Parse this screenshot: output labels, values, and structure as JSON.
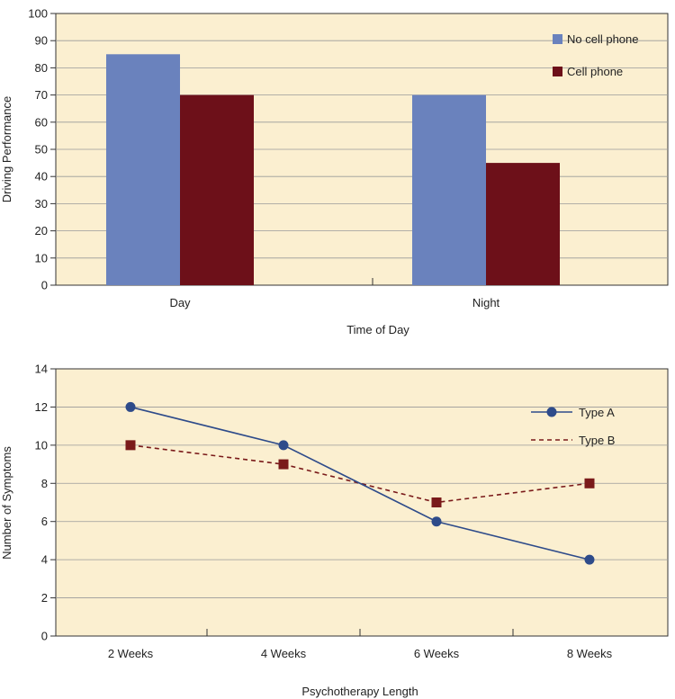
{
  "chart_data": [
    {
      "type": "bar",
      "xlabel": "Time of Day",
      "ylabel": "Driving Performance",
      "ylim": [
        0,
        100
      ],
      "ytick_step": 10,
      "categories": [
        "Day",
        "Night"
      ],
      "grid": true,
      "legend_position": "top-right",
      "background_color": "#fbefd0",
      "series": [
        {
          "name": "No cell phone",
          "values": [
            85,
            70
          ],
          "color": "#6a82bd"
        },
        {
          "name": "Cell phone",
          "values": [
            70,
            45
          ],
          "color": "#6d1019"
        }
      ]
    },
    {
      "type": "line",
      "xlabel": "Psychotherapy Length",
      "ylabel": "Number of Symptoms",
      "ylim": [
        0,
        14
      ],
      "ytick_step": 2,
      "categories": [
        "2 Weeks",
        "4 Weeks",
        "6 Weeks",
        "8 Weeks"
      ],
      "grid": true,
      "legend_position": "top-right",
      "background_color": "#fbefd0",
      "series": [
        {
          "name": "Type A",
          "values": [
            12,
            10,
            6,
            4
          ],
          "color": "#2e4b8a",
          "marker": "circle",
          "line_style": "solid"
        },
        {
          "name": "Type B",
          "values": [
            10,
            9,
            7,
            8
          ],
          "color": "#7a1a1a",
          "marker": "square",
          "line_style": "dashed"
        }
      ]
    }
  ]
}
